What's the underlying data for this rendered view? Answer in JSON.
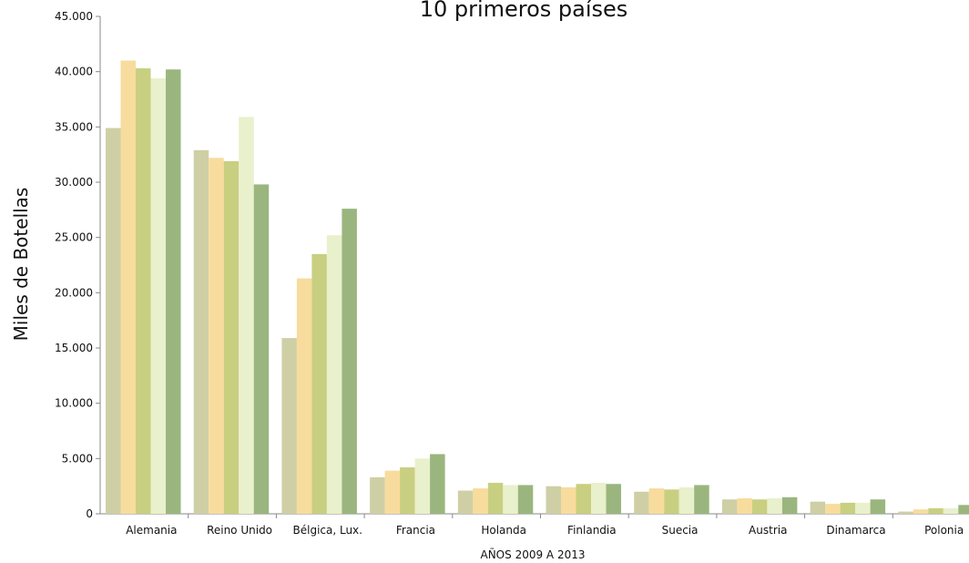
{
  "chart_data": {
    "type": "bar",
    "title": "10 primeros países",
    "xlabel": "AÑOS 2009 A 2013",
    "ylabel": "Miles de Botellas",
    "ylim": [
      0,
      45000
    ],
    "yticks": [
      "0",
      "5.000",
      "10.000",
      "15.000",
      "20.000",
      "25.000",
      "30.000",
      "35.000",
      "40.000",
      "45.000"
    ],
    "grid": false,
    "legend": "none",
    "categories": [
      "Alemania",
      "Reino Unido",
      "Bélgica, Lux.",
      "Francia",
      "Holanda",
      "Finlandia",
      "Suecia",
      "Austria",
      "Dinamarca",
      "Polonia"
    ],
    "series": [
      {
        "color": "#cfcfa6",
        "values": [
          34900,
          32900,
          15900,
          3300,
          2100,
          2500,
          2000,
          1300,
          1100,
          200
        ]
      },
      {
        "color": "#f7dc9d",
        "values": [
          41000,
          32200,
          21300,
          3900,
          2300,
          2400,
          2300,
          1400,
          900,
          400
        ]
      },
      {
        "color": "#c9cf80",
        "values": [
          40300,
          31900,
          23500,
          4200,
          2800,
          2700,
          2200,
          1300,
          1000,
          500
        ]
      },
      {
        "color": "#e9f0cc",
        "values": [
          39400,
          35900,
          25200,
          5000,
          2600,
          2800,
          2400,
          1400,
          1000,
          500
        ]
      },
      {
        "color": "#9ab67e",
        "values": [
          40200,
          29800,
          27600,
          5400,
          2600,
          2700,
          2600,
          1500,
          1300,
          800
        ]
      }
    ]
  }
}
